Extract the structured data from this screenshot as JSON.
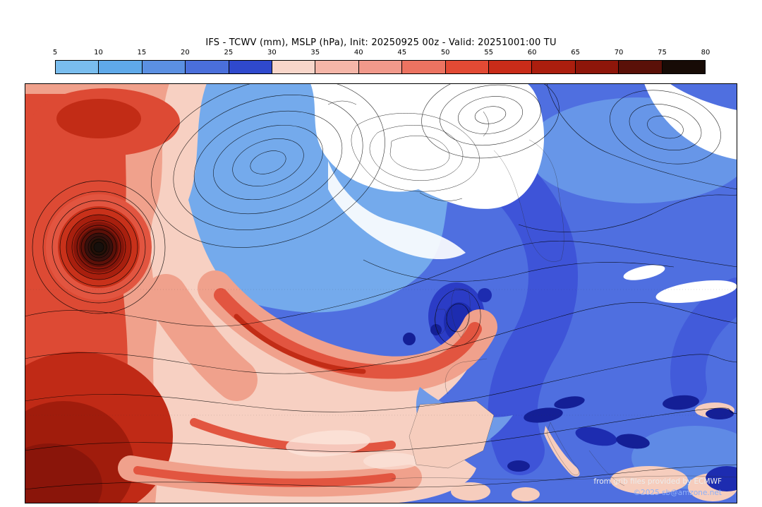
{
  "title": "IFS - TCWV (mm), MSLP (hPa), Init: 20250925 00z - Valid: 20251001:00 TU",
  "colorbar": {
    "ticks": [
      "5",
      "10",
      "15",
      "20",
      "25",
      "30",
      "35",
      "40",
      "45",
      "50",
      "55",
      "60",
      "65",
      "70",
      "75",
      "80"
    ],
    "segment_colors": [
      "#79bdee",
      "#5fa9e9",
      "#5b90e2",
      "#4a6fdb",
      "#2f49cd",
      "#f8d6ca",
      "#f5b6a8",
      "#f1998b",
      "#ec7361",
      "#e24a34",
      "#c92c19",
      "#ab1e0e",
      "#8e160a",
      "#5a1008",
      "#170b06"
    ]
  },
  "attribution": {
    "line1": "from grib files provided by ECMWF",
    "line2": "©2025 sb@amzone.net"
  },
  "map": {
    "colors": {
      "ocean_base": "#4f6fe0",
      "light_blue": "#74aaec",
      "deep_blue": "#2b3cc6",
      "navy": "#141f96",
      "dry_white": "#ffffff",
      "pale_pink": "#f7d0c2",
      "salmon": "#f0a18c",
      "red": "#dd4a34",
      "dark_red": "#c02a16",
      "deepest_red": "#8a150a",
      "vortex_core": "#17100c"
    }
  },
  "chart_data": {
    "type": "heatmap",
    "title": "IFS - TCWV (mm), MSLP (hPa), Init: 20250925 00z - Valid: 20251001:00 TU",
    "field": "TCWV (mm)",
    "overlay": "MSLP (hPa) isobar contours",
    "colorbar_ticks": [
      5,
      10,
      15,
      20,
      25,
      30,
      35,
      40,
      45,
      50,
      55,
      60,
      65,
      70,
      75,
      80
    ],
    "colorbar_colors": [
      "#79bdee",
      "#5fa9e9",
      "#5b90e2",
      "#4a6fdb",
      "#2f49cd",
      "#f8d6ca",
      "#f5b6a8",
      "#f1998b",
      "#ec7361",
      "#e24a34",
      "#c92c19",
      "#ab1e0e",
      "#8e160a",
      "#5a1008",
      "#170b06"
    ],
    "legend_position": "top"
  }
}
